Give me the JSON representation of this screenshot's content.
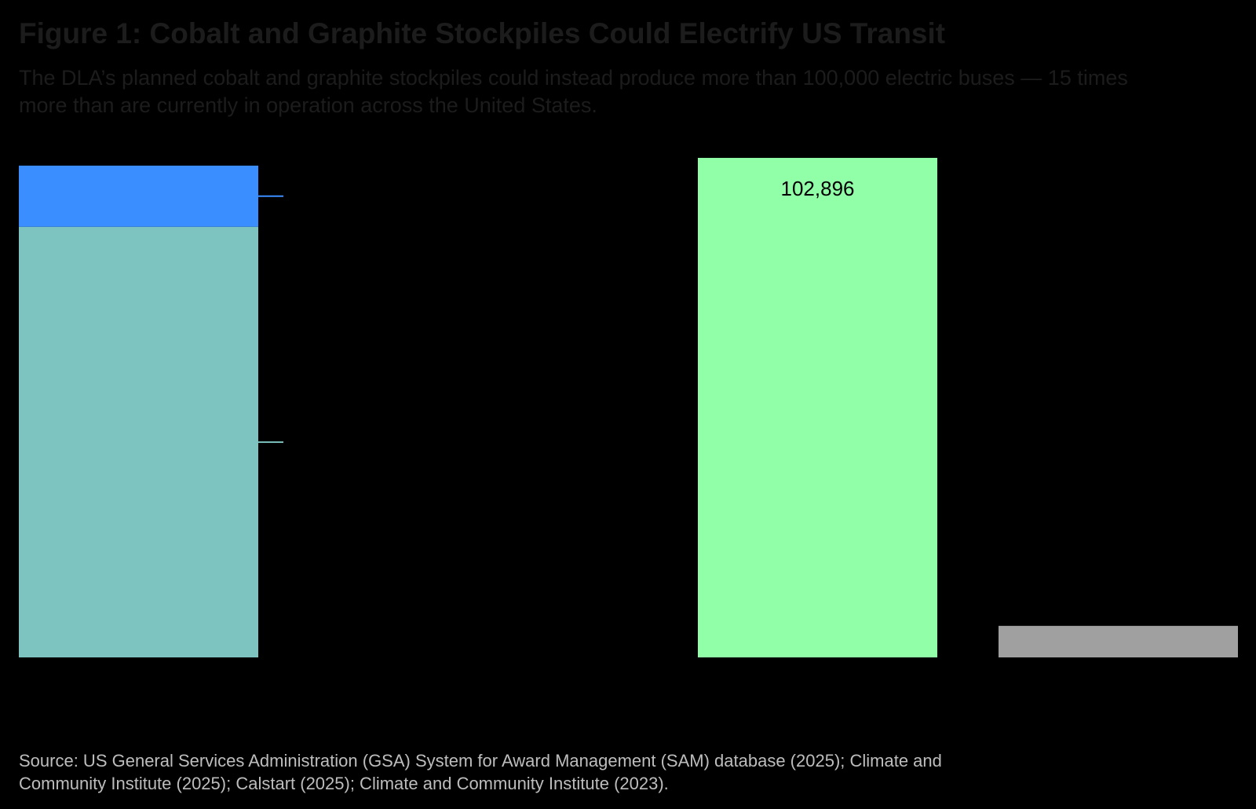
{
  "chart_data": {
    "type": "bar",
    "title": "Figure 1: Cobalt and Graphite Stockpiles Could Electrify US Transit",
    "subtitle": "The DLA’s planned cobalt and graphite stockpiles could instead produce more than 100,000 electric buses — 15 times more than are currently in operation across the United States.",
    "source": "Source: US General Services Administration (GSA) System for Award Management (SAM) database (2025); Climate and Community Institute (2025); Calstart (2025); Climate and Community Institute (2023).",
    "ylim": [
      0,
      102896
    ],
    "grid": false,
    "bars": [
      {
        "slot": 0,
        "segments": [
          {
            "value": 88700,
            "color": "#7dc4c1"
          },
          {
            "value": 12600,
            "color": "#3a8eff"
          }
        ]
      },
      {
        "slot": 2,
        "segments": [
          {
            "value": 102896,
            "color": "#91ffa8",
            "label": "102,896"
          }
        ]
      },
      {
        "slot": 3,
        "segments": [
          {
            "value": 6500,
            "color": "#a0a0a0"
          }
        ]
      }
    ]
  }
}
